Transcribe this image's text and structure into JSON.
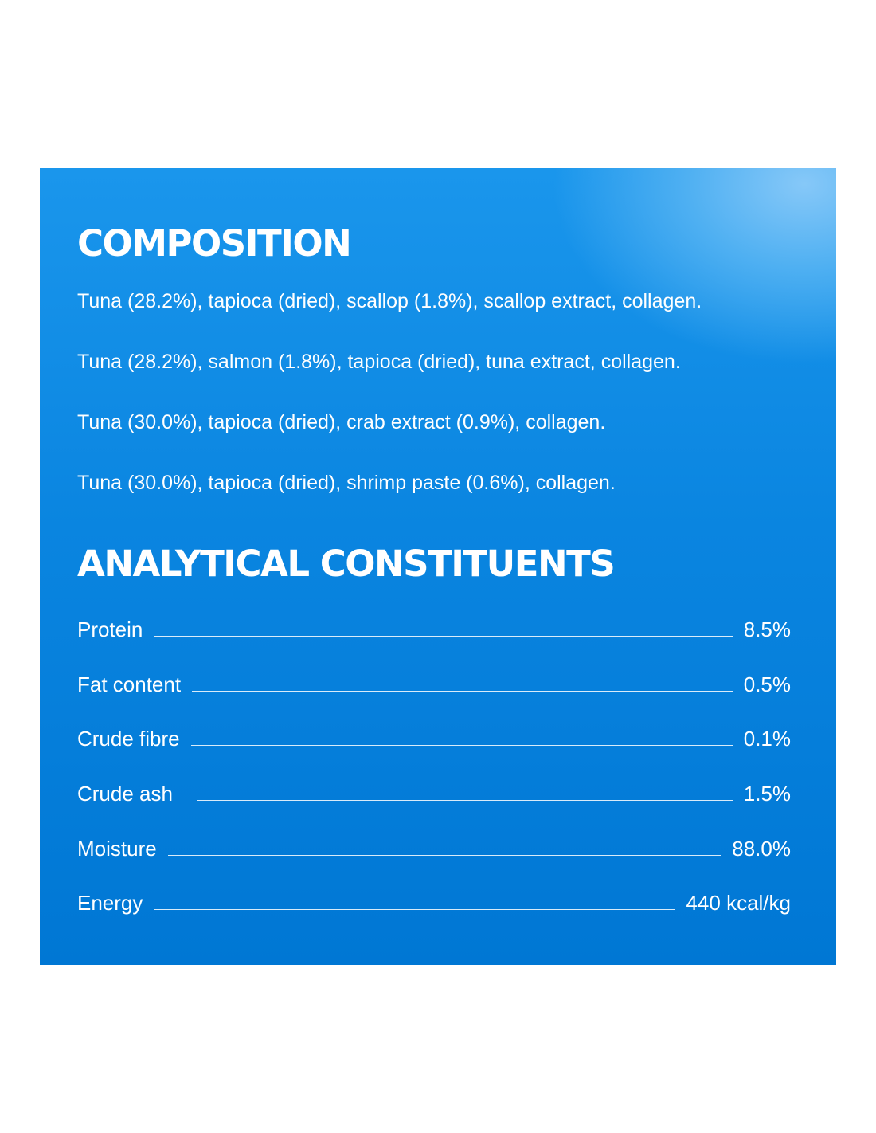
{
  "composition": {
    "title": "COMPOSITION",
    "lines": [
      "Tuna (28.2%), tapioca (dried), scallop (1.8%), scallop extract, collagen.",
      "Tuna (28.2%), salmon (1.8%), tapioca (dried), tuna extract, collagen.",
      "Tuna (30.0%), tapioca (dried), crab extract (0.9%), collagen.",
      "Tuna (30.0%), tapioca (dried), shrimp paste (0.6%), collagen."
    ]
  },
  "analytical": {
    "title": "ANALYTICAL CONSTITUENTS",
    "rows": [
      {
        "label": "Protein",
        "value": "8.5%"
      },
      {
        "label": "Fat content",
        "value": "0.5%"
      },
      {
        "label": "Crude fibre",
        "value": "0.1%"
      },
      {
        "label": "Crude ash",
        "value": "1.5%"
      },
      {
        "label": "Moisture",
        "value": "88.0%"
      },
      {
        "label": "Energy",
        "value": "440 kcal/kg"
      }
    ]
  },
  "colors": {
    "panel_top": "#1a96ec",
    "panel_bottom": "#0077d4",
    "panel_highlight": "#86c8f8",
    "text": "#ffffff"
  }
}
